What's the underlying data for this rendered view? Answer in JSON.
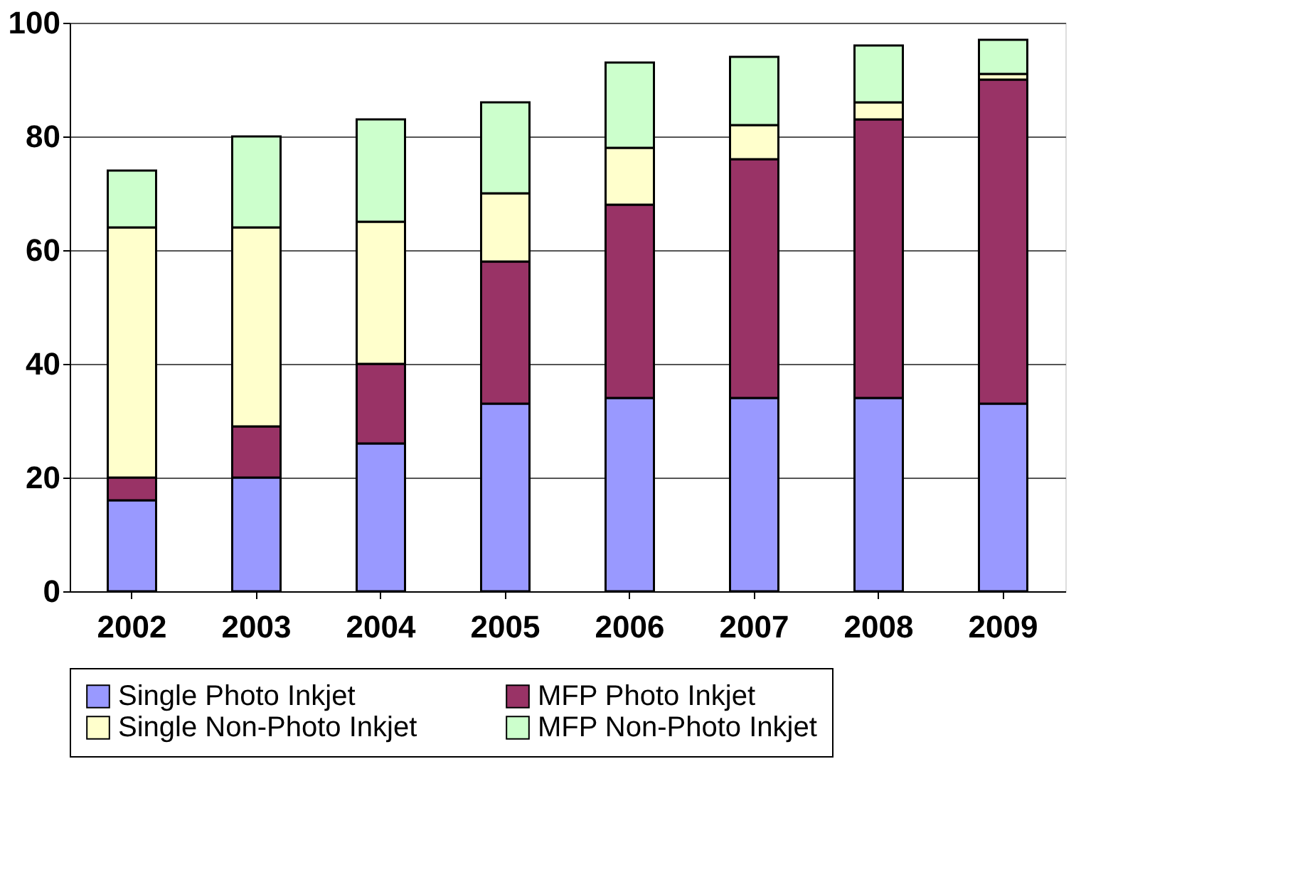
{
  "chart_data": {
    "type": "bar",
    "stacked": true,
    "categories": [
      "2002",
      "2003",
      "2004",
      "2005",
      "2006",
      "2007",
      "2008",
      "2009"
    ],
    "series": [
      {
        "name": "Single Photo Inkjet",
        "color": "#9999ff",
        "values": [
          16,
          20,
          26,
          33,
          34,
          34,
          34,
          33
        ]
      },
      {
        "name": "MFP Photo Inkjet",
        "color": "#993366",
        "values": [
          4,
          9,
          14,
          25,
          34,
          42,
          49,
          57
        ]
      },
      {
        "name": "Single Non-Photo Inkjet",
        "color": "#ffffcc",
        "values": [
          44,
          35,
          25,
          12,
          10,
          6,
          3,
          1
        ]
      },
      {
        "name": "MFP Non-Photo Inkjet",
        "color": "#ccffcc",
        "values": [
          10,
          16,
          18,
          16,
          15,
          12,
          10,
          6
        ]
      }
    ],
    "ylim": [
      0,
      100
    ],
    "yticks": [
      0,
      20,
      40,
      60,
      80,
      100
    ],
    "grid": "y",
    "legend": "bottom"
  }
}
